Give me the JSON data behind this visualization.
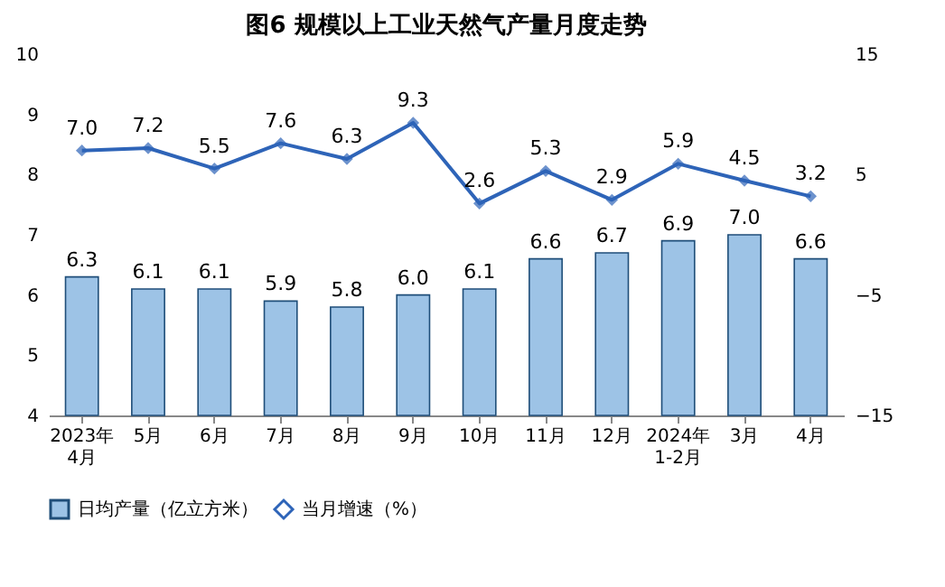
{
  "chart_data": {
    "type": "bar",
    "title": "图6  规模以上工业天然气产量月度走势",
    "categories": [
      "2023年\n4月",
      "5月",
      "6月",
      "7月",
      "8月",
      "9月",
      "10月",
      "11月",
      "12月",
      "2024年\n1-2月",
      "3月",
      "4月"
    ],
    "series": [
      {
        "name": "日均产量（亿立方米）",
        "color": "#9dc3e6",
        "values": [
          6.3,
          6.1,
          6.1,
          5.9,
          5.8,
          6.0,
          6.1,
          6.6,
          6.7,
          6.9,
          7.0,
          6.6
        ],
        "value_labels": [
          "6.3",
          "6.1",
          "6.1",
          "5.9",
          "5.8",
          "6.0",
          "6.1",
          "6.6",
          "6.7",
          "6.9",
          "7.0",
          "6.6"
        ]
      },
      {
        "name": "当月增速（%）",
        "type": "line",
        "axis": "y2",
        "color": "#2e64b8",
        "values": [
          7.0,
          7.2,
          5.5,
          7.6,
          6.3,
          9.3,
          2.6,
          5.3,
          2.9,
          5.9,
          4.5,
          3.2
        ],
        "value_labels": [
          "7.0",
          "7.2",
          "5.5",
          "7.6",
          "6.3",
          "9.3",
          "2.6",
          "5.3",
          "2.9",
          "5.9",
          "4.5",
          "3.2"
        ]
      }
    ],
    "ylim": [
      4,
      10
    ],
    "yticks": [
      4,
      5,
      6,
      7,
      8,
      9,
      10
    ],
    "y2lim": [
      -15,
      15
    ],
    "y2ticks": [
      -15,
      -5,
      5,
      15
    ],
    "legend": "bottom",
    "marker": "diamond",
    "line_style": "solid"
  }
}
